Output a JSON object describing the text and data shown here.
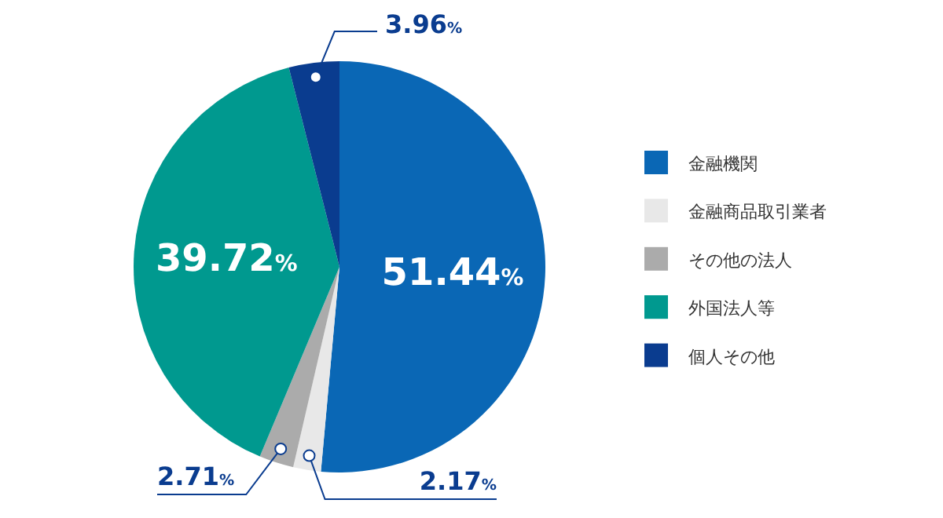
{
  "chart_data": {
    "type": "pie",
    "categories": [
      "金融機関",
      "金融商品取引業者",
      "その他の法人",
      "外国法人等",
      "個人その他"
    ],
    "values": [
      51.44,
      2.17,
      2.71,
      39.72,
      3.96
    ],
    "colors": [
      "#0a67b5",
      "#e8e8e8",
      "#ababab",
      "#00998f",
      "#0a3c8f"
    ],
    "value_labels": [
      "51.44%",
      "2.17%",
      "2.71%",
      "39.72%",
      "3.96%"
    ],
    "legend": "right"
  }
}
